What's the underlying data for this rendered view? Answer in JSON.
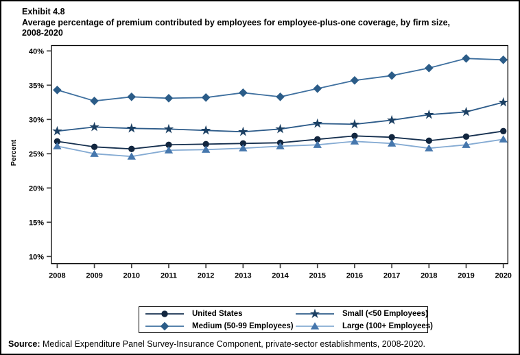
{
  "header": {
    "exhibit_label": "Exhibit 4.8",
    "title_line1": "Average percentage of premium contributed by employees for employee-plus-one coverage, by firm size,",
    "title_line2": "2008-2020"
  },
  "chart_data": {
    "type": "line",
    "x": [
      2008,
      2009,
      2010,
      2011,
      2012,
      2013,
      2014,
      2015,
      2016,
      2017,
      2018,
      2019,
      2020
    ],
    "series": [
      {
        "name": "United States",
        "marker": "circle",
        "marker_color": "#12263f",
        "line_color": "#16304f",
        "values": [
          26.8,
          26.0,
          25.7,
          26.3,
          26.4,
          26.5,
          26.6,
          27.1,
          27.6,
          27.4,
          26.9,
          27.5,
          28.3
        ]
      },
      {
        "name": "Small (<50 Employees)",
        "marker": "star",
        "marker_color": "#1c4063",
        "line_color": "#2e5c8a",
        "values": [
          28.3,
          28.9,
          28.7,
          28.6,
          28.4,
          28.2,
          28.6,
          29.4,
          29.3,
          29.9,
          30.7,
          31.1,
          32.5
        ]
      },
      {
        "name": "Medium (50-99 Employees)",
        "marker": "diamond",
        "marker_color": "#2b5c88",
        "line_color": "#3f709f",
        "values": [
          34.3,
          32.7,
          33.3,
          33.1,
          33.2,
          33.9,
          33.3,
          34.5,
          35.7,
          36.4,
          37.5,
          38.9,
          38.7
        ]
      },
      {
        "name": "Large (100+ Employees)",
        "marker": "triangle",
        "marker_color": "#4677ad",
        "line_color": "#85abd3",
        "values": [
          26.1,
          25.0,
          24.6,
          25.5,
          25.6,
          25.8,
          26.1,
          26.3,
          26.8,
          26.5,
          25.8,
          26.3,
          27.1
        ]
      }
    ],
    "title": "Average percentage of premium contributed by employees for employee-plus-one coverage, by firm size, 2008-2020",
    "xlabel": "",
    "ylabel": "Percent",
    "ylim": [
      10,
      40
    ],
    "yticks": [
      10,
      15,
      20,
      25,
      30,
      35,
      40
    ],
    "ytick_suffix": "%",
    "grid": false,
    "legend_position": "bottom",
    "legend_columns": 2
  },
  "footer": {
    "source_label": "Source:",
    "source_text": " Medical Expenditure Panel Survey-Insurance Component, private-sector establishments, 2008-2020."
  }
}
